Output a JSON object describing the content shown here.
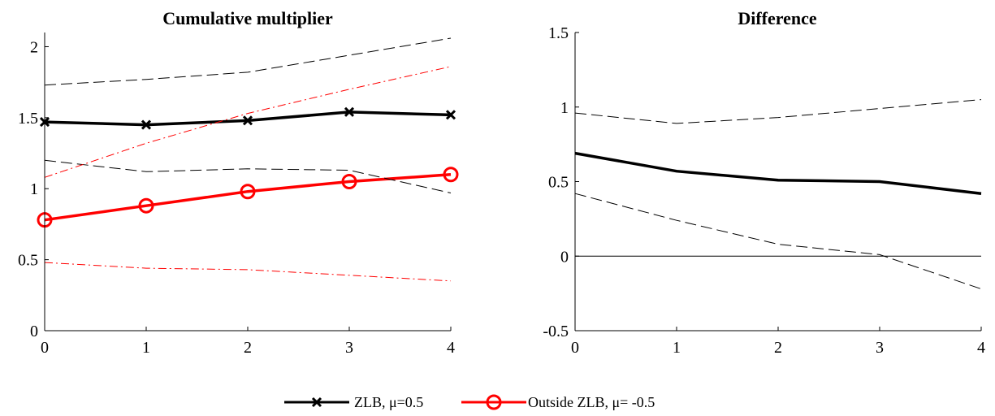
{
  "chart_data": [
    {
      "type": "line",
      "title": "Cumulative multiplier",
      "xlabel": "",
      "ylabel": "",
      "x": [
        0,
        1,
        2,
        3,
        4
      ],
      "xlim": [
        0,
        4
      ],
      "ylim": [
        0,
        2.1
      ],
      "xticks": [
        "0",
        "1",
        "2",
        "3",
        "4"
      ],
      "yticks": [
        "0",
        "0.5",
        "1",
        "1.5",
        "2"
      ],
      "ytick_values": [
        0,
        0.5,
        1,
        1.5,
        2
      ],
      "grid": false,
      "series": [
        {
          "name": "ZLB, μ=0.5",
          "role": "point",
          "color": "#000000",
          "marker": "x",
          "values": [
            1.47,
            1.45,
            1.48,
            1.54,
            1.52
          ]
        },
        {
          "name": "Outside ZLB, μ= -0.5",
          "role": "point",
          "color": "#ff0000",
          "marker": "o",
          "values": [
            0.78,
            0.88,
            0.98,
            1.05,
            1.1
          ]
        },
        {
          "role": "band",
          "color": "#000000",
          "dash": "dashed",
          "values": [
            1.73,
            1.77,
            1.82,
            1.94,
            2.06
          ]
        },
        {
          "role": "band",
          "color": "#000000",
          "dash": "dashed",
          "values": [
            1.2,
            1.12,
            1.14,
            1.13,
            0.97
          ]
        },
        {
          "role": "band",
          "color": "#ff0000",
          "dash": "dashdot",
          "values": [
            1.08,
            1.32,
            1.53,
            1.7,
            1.86
          ]
        },
        {
          "role": "band",
          "color": "#ff0000",
          "dash": "dashdot",
          "values": [
            0.48,
            0.44,
            0.43,
            0.39,
            0.35
          ]
        }
      ]
    },
    {
      "type": "line",
      "title": "Difference",
      "xlabel": "",
      "ylabel": "",
      "x": [
        0,
        1,
        2,
        3,
        4
      ],
      "xlim": [
        0,
        4
      ],
      "ylim": [
        -0.5,
        1.5
      ],
      "xticks": [
        "0",
        "1",
        "2",
        "3",
        "4"
      ],
      "yticks": [
        "-0.5",
        "0",
        "0.5",
        "1",
        "1.5"
      ],
      "ytick_values": [
        -0.5,
        0,
        0.5,
        1,
        1.5
      ],
      "grid": false,
      "zero_line": true,
      "series": [
        {
          "role": "point",
          "color": "#000000",
          "marker": "none",
          "values": [
            0.69,
            0.57,
            0.51,
            0.5,
            0.42
          ]
        },
        {
          "role": "band",
          "color": "#000000",
          "dash": "dashed",
          "values": [
            0.96,
            0.89,
            0.93,
            0.99,
            1.05
          ]
        },
        {
          "role": "band",
          "color": "#000000",
          "dash": "dashed",
          "values": [
            0.42,
            0.24,
            0.08,
            0.01,
            -0.22
          ]
        }
      ]
    }
  ],
  "legend": {
    "placement": "bottom-center",
    "entries": [
      {
        "label": "ZLB, μ=0.5",
        "color": "#000000",
        "marker": "x"
      },
      {
        "label": "Outside ZLB, μ= -0.5",
        "color": "#ff0000",
        "marker": "o"
      }
    ]
  }
}
